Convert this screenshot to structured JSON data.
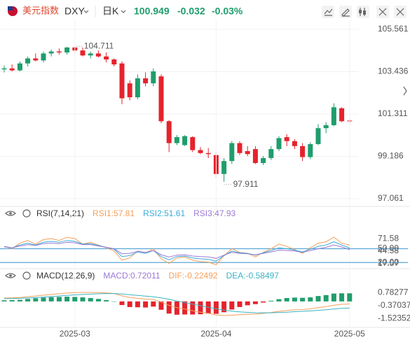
{
  "header": {
    "name": "美元指数",
    "symbol": "DXY",
    "period": "日K",
    "change": -0.032,
    "change_percent": "-0.03%"
  },
  "chart_data": [
    {
      "type": "candlestick",
      "up_color": "#1f9d6c",
      "down_color": "#e5232c",
      "grid": true,
      "categories": [
        null,
        null,
        null,
        null,
        null,
        null,
        null,
        null,
        null,
        "2025-03",
        null,
        null,
        null,
        null,
        null,
        null,
        null,
        null,
        null,
        null,
        null,
        null,
        null,
        null,
        null,
        null,
        null,
        "2025-04",
        null,
        null,
        null,
        null,
        null,
        null,
        null,
        null,
        null,
        null,
        null,
        null,
        null,
        null,
        null,
        null,
        "2025-05"
      ],
      "open": [
        103.55,
        103.6,
        103.5,
        103.85,
        104.1,
        104.0,
        104.35,
        104.45,
        104.4,
        104.65,
        104.5,
        104.25,
        104.35,
        104.2,
        104.05,
        103.85,
        102.85,
        102.15,
        103.1,
        102.85,
        103.2,
        100.95,
        99.85,
        99.75,
        100.15,
        99.5,
        99.35,
        99.25,
        98.3,
        98.95,
        99.85,
        99.45,
        99.55,
        98.85,
        99.1,
        99.55,
        100.15,
        99.95,
        99.7,
        99.15,
        99.8,
        100.6,
        100.75,
        101.6,
        100.98
      ],
      "high": [
        103.75,
        103.8,
        103.95,
        104.2,
        104.35,
        104.45,
        104.55,
        104.6,
        104.68,
        104.711,
        104.65,
        104.45,
        104.5,
        104.4,
        104.1,
        103.95,
        103.0,
        103.3,
        103.4,
        103.6,
        103.3,
        101.0,
        100.25,
        100.25,
        100.2,
        99.65,
        99.6,
        99.4,
        99.1,
        99.95,
        99.95,
        99.7,
        99.7,
        99.2,
        99.7,
        100.2,
        100.3,
        100.05,
        99.85,
        99.9,
        100.8,
        100.9,
        101.85,
        101.65,
        101.05
      ],
      "low": [
        103.4,
        103.45,
        103.45,
        103.7,
        103.95,
        103.9,
        104.2,
        104.3,
        104.3,
        104.4,
        104.2,
        104.1,
        104.15,
        103.9,
        103.7,
        101.8,
        102.0,
        102.05,
        102.7,
        102.7,
        100.85,
        99.4,
        99.75,
        99.7,
        99.4,
        99.3,
        99.1,
        98.1,
        97.911,
        98.8,
        99.25,
        99.2,
        98.8,
        98.75,
        99.0,
        99.45,
        99.7,
        99.55,
        98.95,
        99.05,
        99.75,
        100.35,
        100.7,
        100.9,
        100.85
      ],
      "close": [
        103.6,
        103.5,
        103.85,
        104.1,
        104.0,
        104.35,
        104.45,
        104.4,
        104.65,
        104.5,
        104.25,
        104.35,
        104.2,
        104.05,
        103.8,
        102.1,
        102.15,
        103.1,
        102.85,
        103.45,
        100.95,
        99.85,
        100.15,
        100.2,
        99.5,
        99.35,
        99.3,
        98.3,
        98.95,
        99.85,
        99.35,
        99.3,
        98.85,
        99.1,
        99.55,
        100.1,
        99.95,
        99.7,
        99.15,
        99.8,
        100.6,
        100.75,
        101.65,
        100.95,
        100.949
      ],
      "ylim": [
        96.78,
        106.05
      ],
      "yticks": [
        105.561,
        103.436,
        101.311,
        99.186,
        97.061
      ]
    },
    {
      "type": "line",
      "title": "RSI(7,14,21)",
      "series": [
        {
          "legend": "RSI1:57.81",
          "color": "#f5a05a",
          "values": [
            55,
            50,
            62,
            68,
            60,
            70,
            72,
            68,
            75,
            72,
            60,
            64,
            58,
            52,
            45,
            25,
            30,
            45,
            40,
            50,
            28,
            18,
            30,
            32,
            25,
            22,
            21,
            15,
            35,
            50,
            42,
            40,
            32,
            42,
            50,
            60,
            55,
            48,
            40,
            52,
            62,
            65,
            75,
            62,
            57.81
          ]
        },
        {
          "legend": "RSI2:51.61",
          "color": "#3aa9d8",
          "values": [
            55,
            52,
            58,
            62,
            58,
            64,
            66,
            64,
            68,
            66,
            60,
            61,
            57,
            53,
            49,
            33,
            35,
            43,
            40,
            46,
            33,
            26,
            33,
            34,
            30,
            28,
            27,
            23,
            35,
            45,
            41,
            40,
            36,
            41,
            46,
            52,
            50,
            47,
            43,
            49,
            55,
            58,
            65,
            58,
            51.61
          ]
        },
        {
          "legend": "RSI3:47.93",
          "color": "#9a7ad4",
          "values": [
            54,
            52,
            56,
            59,
            57,
            61,
            62,
            61,
            64,
            63,
            59,
            59,
            56,
            53,
            50,
            39,
            40,
            44,
            42,
            46,
            37,
            32,
            36,
            37,
            34,
            33,
            32,
            29,
            36,
            42,
            40,
            39,
            37,
            40,
            43,
            47,
            46,
            45,
            42,
            46,
            50,
            53,
            58,
            54,
            47.93
          ]
        }
      ],
      "ylim": [
        9.7,
        104
      ],
      "yticks": [
        71.58,
        44.58,
        17.57
      ],
      "hlines": [
        {
          "value": 50,
          "label": "50.00"
        },
        {
          "value": 20,
          "label": "20.00"
        }
      ],
      "hline_color": "#5aa6d8"
    },
    {
      "type": "combo",
      "title": "MACD(12,26,9)",
      "series": [
        {
          "legend": "MACD:0.72011",
          "kind": "bar",
          "color": "#9a7ad4",
          "up_color": "#1f9d6c",
          "down_color": "#e5232c",
          "values": [
            0.1,
            0.12,
            0.14,
            0.22,
            0.28,
            0.34,
            0.38,
            0.4,
            0.42,
            0.4,
            0.36,
            0.3,
            0.22,
            0.12,
            0.0,
            -0.32,
            -0.5,
            -0.52,
            -0.54,
            -0.46,
            -0.74,
            -1.08,
            -1.18,
            -1.16,
            -1.16,
            -1.14,
            -1.08,
            -1.1,
            -0.96,
            -0.72,
            -0.5,
            -0.34,
            -0.24,
            -0.1,
            0.06,
            0.2,
            0.3,
            0.34,
            0.32,
            0.36,
            0.48,
            0.56,
            0.7,
            0.72,
            0.72011
          ]
        },
        {
          "legend": "DIF:-0.22492",
          "kind": "line",
          "color": "#f5a05a",
          "values": [
            0.3,
            0.32,
            0.35,
            0.42,
            0.48,
            0.55,
            0.62,
            0.68,
            0.74,
            0.78,
            0.8,
            0.8,
            0.79,
            0.76,
            0.7,
            0.5,
            0.35,
            0.28,
            0.2,
            0.18,
            -0.05,
            -0.35,
            -0.55,
            -0.68,
            -0.82,
            -0.95,
            -1.05,
            -1.2,
            -1.25,
            -1.22,
            -1.18,
            -1.14,
            -1.12,
            -1.06,
            -0.98,
            -0.88,
            -0.8,
            -0.74,
            -0.72,
            -0.66,
            -0.55,
            -0.46,
            -0.33,
            -0.26,
            -0.22492
          ]
        },
        {
          "legend": "DEA:-0.58497",
          "kind": "line",
          "color": "#3bb3c3",
          "values": [
            0.25,
            0.26,
            0.28,
            0.31,
            0.34,
            0.38,
            0.43,
            0.48,
            0.53,
            0.58,
            0.62,
            0.65,
            0.68,
            0.7,
            0.7,
            0.66,
            0.6,
            0.54,
            0.47,
            0.41,
            0.32,
            0.19,
            0.04,
            -0.1,
            -0.24,
            -0.38,
            -0.51,
            -0.65,
            -0.77,
            -0.86,
            -0.93,
            -0.97,
            -1.0,
            -1.01,
            -1.01,
            -0.98,
            -0.95,
            -0.91,
            -0.88,
            -0.84,
            -0.79,
            -0.74,
            -0.68,
            -0.62,
            -0.58497
          ]
        }
      ],
      "ylim": [
        -2.12,
        1.73
      ],
      "yticks": [
        0.78277,
        -0.37037,
        -1.52352
      ]
    }
  ]
}
